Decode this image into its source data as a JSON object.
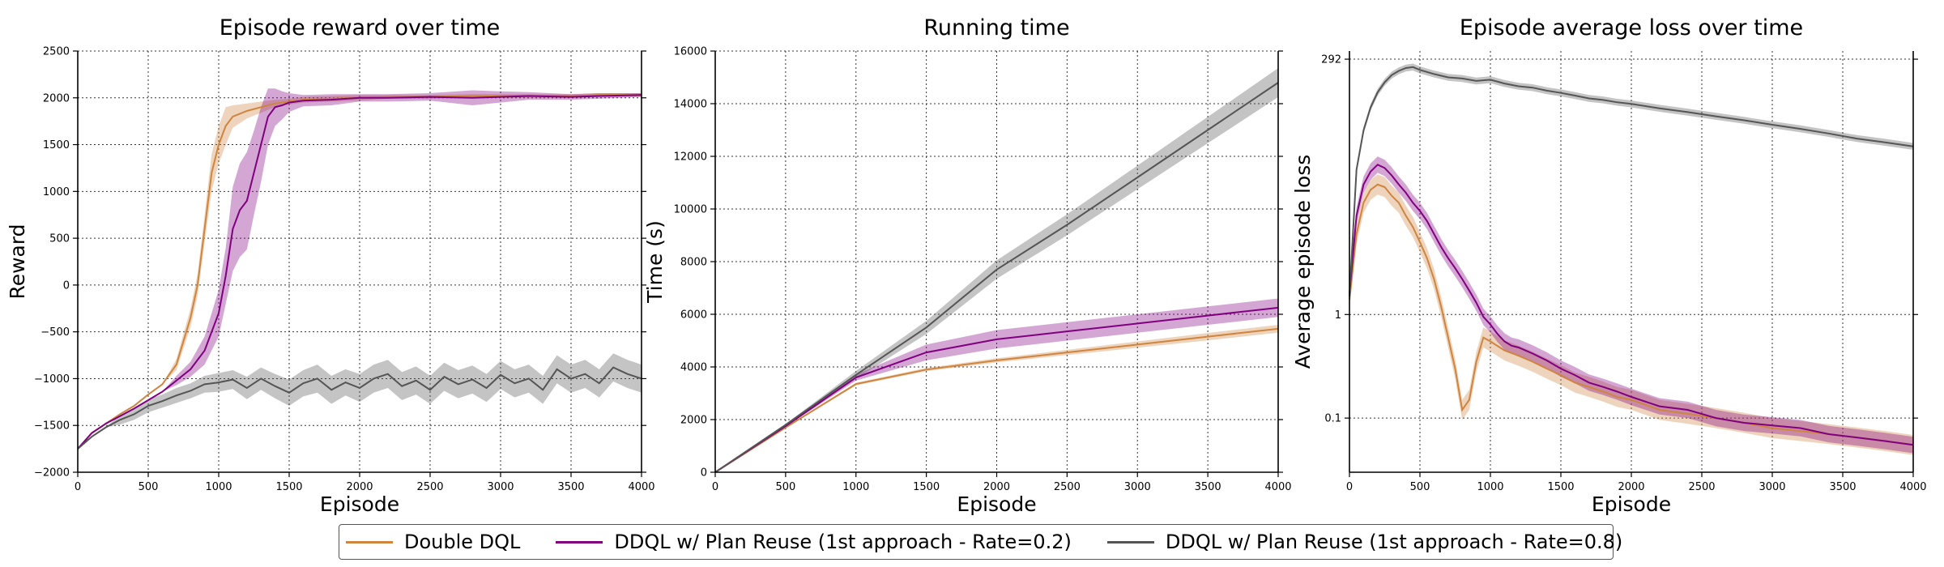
{
  "series_names": [
    "Double DQL",
    "DDQL w/ Plan Reuse (1st approach - Rate=0.2)",
    "DDQL w/ Plan Reuse (1st approach - Rate=0.8)"
  ],
  "colors": {
    "Double DQL": "#cd853f",
    "DDQL w/ Plan Reuse (1st approach - Rate=0.2)": "#800080",
    "DDQL w/ Plan Reuse (1st approach - Rate=0.8)": "#555555"
  },
  "legend": {
    "placement": "bottom-center"
  },
  "chart_data": [
    {
      "type": "line",
      "title": "Episode reward over time",
      "xlabel": "Episode",
      "ylabel": "Reward",
      "xlim": [
        0,
        4000
      ],
      "ylim": [
        -2000,
        2500
      ],
      "xticks": [
        0,
        500,
        1000,
        1500,
        2000,
        2500,
        3000,
        3500,
        4000
      ],
      "yticks": [
        -2000,
        -1500,
        -1000,
        -500,
        0,
        500,
        1000,
        1500,
        2000,
        2500
      ],
      "ytick_labels": [
        "−2000",
        "−1500",
        "−1000",
        "−500",
        "0",
        "500",
        "1000",
        "1500",
        "2000",
        "2500"
      ],
      "grid": true,
      "shaded_band": true,
      "series": [
        {
          "name": "Double DQL",
          "x": [
            0,
            100,
            200,
            300,
            400,
            500,
            600,
            700,
            750,
            800,
            850,
            900,
            950,
            1000,
            1050,
            1100,
            1200,
            1300,
            1400,
            1500,
            1600,
            1800,
            2000,
            2200,
            2500,
            2800,
            3000,
            3200,
            3500,
            3700,
            4000
          ],
          "y": [
            -1750,
            -1580,
            -1480,
            -1380,
            -1290,
            -1170,
            -1060,
            -850,
            -600,
            -350,
            0,
            600,
            1200,
            1500,
            1700,
            1800,
            1860,
            1900,
            1940,
            1960,
            1980,
            1990,
            2000,
            2010,
            2010,
            2020,
            2020,
            2020,
            2020,
            2030,
            2030
          ],
          "band": [
            0,
            0,
            0,
            0,
            0,
            0,
            0,
            60,
            80,
            100,
            120,
            150,
            200,
            200,
            200,
            120,
            80,
            60,
            40,
            30,
            30,
            30,
            30,
            20,
            20,
            20,
            20,
            20,
            20,
            20,
            20
          ]
        },
        {
          "name": "DDQL w/ Plan Reuse (1st approach - Rate=0.2)",
          "x": [
            0,
            100,
            200,
            300,
            400,
            500,
            600,
            700,
            800,
            900,
            1000,
            1050,
            1100,
            1150,
            1200,
            1250,
            1300,
            1350,
            1400,
            1450,
            1500,
            1600,
            1800,
            2000,
            2200,
            2500,
            2800,
            3000,
            3200,
            3500,
            3700,
            4000
          ],
          "y": [
            -1750,
            -1580,
            -1480,
            -1400,
            -1320,
            -1230,
            -1140,
            -1020,
            -900,
            -700,
            -300,
            100,
            600,
            800,
            900,
            1200,
            1500,
            1800,
            1900,
            1920,
            1950,
            1970,
            1980,
            2000,
            2000,
            2010,
            2000,
            2010,
            2020,
            2010,
            2020,
            2030
          ],
          "band": [
            0,
            0,
            0,
            0,
            0,
            0,
            0,
            50,
            80,
            150,
            250,
            300,
            450,
            500,
            520,
            450,
            400,
            300,
            200,
            150,
            100,
            60,
            60,
            40,
            40,
            40,
            80,
            60,
            40,
            30,
            30,
            20
          ]
        },
        {
          "name": "DDQL w/ Plan Reuse (1st approach - Rate=0.8)",
          "x": [
            0,
            100,
            200,
            300,
            400,
            500,
            600,
            700,
            800,
            900,
            1000,
            1100,
            1200,
            1300,
            1400,
            1500,
            1600,
            1700,
            1800,
            1900,
            2000,
            2100,
            2200,
            2300,
            2400,
            2500,
            2600,
            2700,
            2800,
            2900,
            3000,
            3100,
            3200,
            3300,
            3400,
            3500,
            3600,
            3700,
            3800,
            3900,
            4000
          ],
          "y": [
            -1750,
            -1620,
            -1520,
            -1440,
            -1380,
            -1290,
            -1240,
            -1180,
            -1130,
            -1060,
            -1040,
            -1010,
            -1100,
            -1000,
            -1080,
            -1150,
            -1050,
            -1000,
            -1120,
            -1040,
            -1100,
            -1000,
            -950,
            -1080,
            -1020,
            -1120,
            -980,
            -1060,
            -1010,
            -1100,
            -960,
            -1050,
            -1000,
            -1120,
            -900,
            -1000,
            -950,
            -1050,
            -880,
            -950,
            -1000
          ],
          "band": [
            0,
            0,
            0,
            50,
            60,
            70,
            70,
            80,
            80,
            90,
            100,
            100,
            120,
            120,
            130,
            140,
            140,
            150,
            150,
            140,
            150,
            150,
            150,
            150,
            150,
            150,
            150,
            150,
            150,
            150,
            150,
            150,
            150,
            150,
            150,
            150,
            150,
            150,
            150,
            150,
            150
          ]
        }
      ]
    },
    {
      "type": "line",
      "title": "Running time",
      "xlabel": "Episode",
      "ylabel": "Time (s)",
      "xlim": [
        0,
        4000
      ],
      "ylim": [
        0,
        16000
      ],
      "xticks": [
        0,
        500,
        1000,
        1500,
        2000,
        2500,
        3000,
        3500,
        4000
      ],
      "yticks": [
        0,
        2000,
        4000,
        6000,
        8000,
        10000,
        12000,
        14000,
        16000
      ],
      "ytick_labels": [
        "0",
        "2000",
        "4000",
        "6000",
        "8000",
        "10000",
        "12000",
        "14000",
        "16000"
      ],
      "grid": true,
      "shaded_band": true,
      "series": [
        {
          "name": "Double DQL",
          "x": [
            0,
            500,
            1000,
            1500,
            2000,
            2500,
            3000,
            3500,
            4000
          ],
          "y": [
            0,
            1700,
            3350,
            3900,
            4250,
            4550,
            4850,
            5150,
            5450
          ],
          "band": [
            0,
            10,
            50,
            60,
            80,
            100,
            120,
            140,
            150
          ]
        },
        {
          "name": "DDQL w/ Plan Reuse (1st approach - Rate=0.2)",
          "x": [
            0,
            500,
            1000,
            1500,
            2000,
            2500,
            3000,
            3500,
            4000
          ],
          "y": [
            0,
            1750,
            3600,
            4550,
            5050,
            5350,
            5650,
            5950,
            6250
          ],
          "band": [
            0,
            20,
            120,
            300,
            350,
            350,
            350,
            350,
            350
          ]
        },
        {
          "name": "DDQL w/ Plan Reuse (1st approach - Rate=0.8)",
          "x": [
            0,
            500,
            1000,
            1500,
            2000,
            2500,
            3000,
            3500,
            4000
          ],
          "y": [
            0,
            1800,
            3700,
            5500,
            7700,
            9400,
            11200,
            13000,
            14800
          ],
          "band": [
            0,
            30,
            150,
            250,
            350,
            400,
            450,
            500,
            550
          ]
        }
      ]
    },
    {
      "type": "line",
      "title": "Episode average loss over time",
      "xlabel": "Episode",
      "ylabel": "Average episode loss",
      "xlim": [
        0,
        4000
      ],
      "ylim": [
        0.03,
        350
      ],
      "yscale": "log",
      "xticks": [
        0,
        500,
        1000,
        1500,
        2000,
        2500,
        3000,
        3500,
        4000
      ],
      "yticks": [
        0.1,
        1,
        292
      ],
      "ytick_labels": [
        "0.1",
        "1",
        "292"
      ],
      "grid": true,
      "shaded_band": true,
      "series": [
        {
          "name": "Double DQL",
          "x": [
            0,
            50,
            100,
            150,
            200,
            250,
            300,
            350,
            400,
            450,
            500,
            550,
            600,
            650,
            700,
            750,
            800,
            850,
            900,
            950,
            1000,
            1100,
            1200,
            1300,
            1400,
            1500,
            1600,
            1700,
            1800,
            1900,
            2000,
            2200,
            2400,
            2600,
            2800,
            3000,
            3200,
            3400,
            3600,
            3800,
            4000
          ],
          "y": [
            1.4,
            6,
            12,
            16,
            18,
            17,
            14,
            12,
            9,
            7,
            5,
            3.5,
            2.2,
            1.2,
            0.6,
            0.3,
            0.12,
            0.15,
            0.35,
            0.6,
            0.55,
            0.45,
            0.4,
            0.35,
            0.3,
            0.26,
            0.22,
            0.2,
            0.18,
            0.16,
            0.15,
            0.12,
            0.11,
            0.1,
            0.09,
            0.08,
            0.075,
            0.07,
            0.065,
            0.06,
            0.055
          ],
          "band_factor": 1.25
        },
        {
          "name": "DDQL w/ Plan Reuse (1st approach - Rate=0.2)",
          "x": [
            0,
            50,
            100,
            150,
            200,
            250,
            300,
            350,
            400,
            450,
            500,
            550,
            600,
            650,
            700,
            750,
            800,
            850,
            900,
            950,
            1000,
            1050,
            1100,
            1150,
            1200,
            1300,
            1400,
            1500,
            1600,
            1700,
            1800,
            1900,
            2000,
            2200,
            2400,
            2600,
            2800,
            3000,
            3200,
            3400,
            3600,
            3800,
            4000
          ],
          "y": [
            1.6,
            9,
            18,
            24,
            28,
            26,
            22,
            18,
            15,
            12,
            10,
            8,
            6,
            4.5,
            3.5,
            2.8,
            2.2,
            1.7,
            1.3,
            0.95,
            0.8,
            0.65,
            0.55,
            0.5,
            0.48,
            0.42,
            0.36,
            0.3,
            0.26,
            0.22,
            0.2,
            0.18,
            0.16,
            0.13,
            0.12,
            0.1,
            0.09,
            0.085,
            0.08,
            0.07,
            0.065,
            0.06,
            0.055
          ],
          "band_factor": 1.2
        },
        {
          "name": "DDQL w/ Plan Reuse (1st approach - Rate=0.8)",
          "x": [
            0,
            50,
            100,
            150,
            200,
            250,
            300,
            350,
            400,
            450,
            500,
            600,
            700,
            800,
            900,
            1000,
            1100,
            1200,
            1300,
            1400,
            1500,
            1600,
            1700,
            1800,
            1900,
            2000,
            2200,
            2400,
            2600,
            2800,
            3000,
            3200,
            3400,
            3600,
            3800,
            4000
          ],
          "y": [
            1.5,
            25,
            60,
            100,
            140,
            175,
            205,
            225,
            240,
            245,
            230,
            210,
            195,
            190,
            180,
            185,
            170,
            160,
            155,
            145,
            138,
            130,
            122,
            118,
            112,
            108,
            98,
            90,
            82,
            75,
            68,
            62,
            56,
            50,
            46,
            42
          ],
          "band_factor": 1.08
        }
      ]
    }
  ]
}
